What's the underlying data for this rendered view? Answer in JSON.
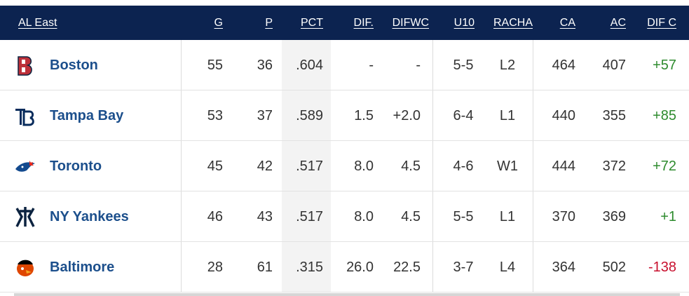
{
  "table": {
    "header": [
      "AL East",
      "G",
      "P",
      "PCT",
      "DIF.",
      "DIFWC",
      "U10",
      "RACHA",
      "CA",
      "AC",
      "DIF C"
    ],
    "rows": [
      [
        "Boston",
        "55",
        "36",
        ".604",
        "-",
        "-",
        "5-5",
        "L2",
        "464",
        "407",
        "+57"
      ],
      [
        "Tampa Bay",
        "53",
        "37",
        ".589",
        "1.5",
        "+2.0",
        "6-4",
        "L1",
        "440",
        "355",
        "+85"
      ],
      [
        "Toronto",
        "45",
        "42",
        ".517",
        "8.0",
        "4.5",
        "4-6",
        "W1",
        "444",
        "372",
        "+72"
      ],
      [
        "NY Yankees",
        "46",
        "43",
        ".517",
        "8.0",
        "4.5",
        "5-5",
        "L1",
        "370",
        "369",
        "+1"
      ],
      [
        "Baltimore",
        "28",
        "61",
        ".315",
        "26.0",
        "22.5",
        "3-7",
        "L4",
        "364",
        "502",
        "-138"
      ]
    ]
  }
}
